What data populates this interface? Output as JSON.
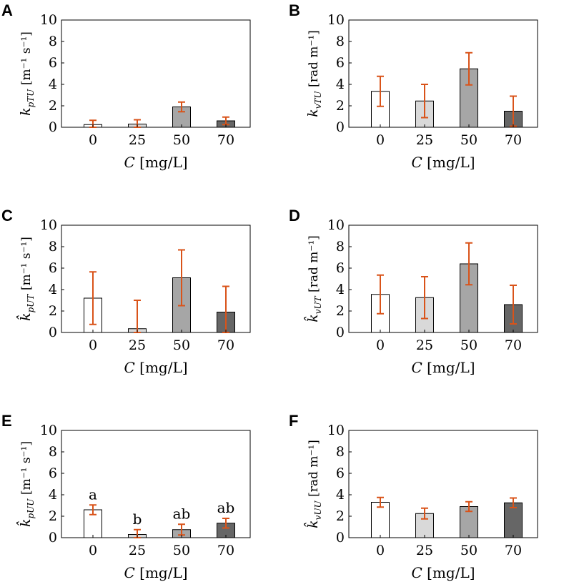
{
  "colors": {
    "error_bar": "#d95319",
    "axis": "#000000",
    "bar_fills": [
      "#ffffff",
      "#d9d9d9",
      "#a6a6a6",
      "#666666"
    ]
  },
  "chart_data": [
    {
      "panel": "A",
      "type": "bar",
      "categories": [
        "0",
        "25",
        "50",
        "70"
      ],
      "values": [
        0.25,
        0.3,
        1.9,
        0.6
      ],
      "errors": [
        0.4,
        0.4,
        0.45,
        0.35
      ],
      "ylim": [
        0,
        10
      ],
      "yticks": [
        "0",
        "2",
        "4",
        "6",
        "8",
        "10"
      ],
      "ylabel": {
        "main": "k",
        "sub": "pTU",
        "hat": false,
        "units": "[m⁻¹ s⁻¹]"
      },
      "xlabel": {
        "var": "C",
        "units": "[mg/L]"
      },
      "annotations": []
    },
    {
      "panel": "B",
      "type": "bar",
      "categories": [
        "0",
        "25",
        "50",
        "70"
      ],
      "values": [
        3.35,
        2.45,
        5.45,
        1.5
      ],
      "errors": [
        1.4,
        1.55,
        1.5,
        1.4
      ],
      "ylim": [
        0,
        10
      ],
      "yticks": [
        "0",
        "2",
        "4",
        "6",
        "8",
        "10"
      ],
      "ylabel": {
        "main": "k",
        "sub": "vTU",
        "hat": false,
        "units": "[rad m⁻¹]"
      },
      "xlabel": {
        "var": "C",
        "units": "[mg/L]"
      },
      "annotations": []
    },
    {
      "panel": "C",
      "type": "bar",
      "categories": [
        "0",
        "25",
        "50",
        "70"
      ],
      "values": [
        3.2,
        0.35,
        5.1,
        1.9
      ],
      "errors": [
        2.45,
        2.65,
        2.6,
        2.4
      ],
      "ylim": [
        0,
        10
      ],
      "yticks": [
        "0",
        "2",
        "4",
        "6",
        "8",
        "10"
      ],
      "ylabel": {
        "main": "k",
        "sub": "pUT",
        "hat": true,
        "units": "[m⁻¹ s⁻¹]"
      },
      "xlabel": {
        "var": "C",
        "units": "[mg/L]"
      },
      "annotations": []
    },
    {
      "panel": "D",
      "type": "bar",
      "categories": [
        "0",
        "25",
        "50",
        "70"
      ],
      "values": [
        3.55,
        3.25,
        6.4,
        2.6
      ],
      "errors": [
        1.8,
        1.95,
        1.95,
        1.8
      ],
      "ylim": [
        0,
        10
      ],
      "yticks": [
        "0",
        "2",
        "4",
        "6",
        "8",
        "10"
      ],
      "ylabel": {
        "main": "k",
        "sub": "vUT",
        "hat": true,
        "units": "[rad m⁻¹]"
      },
      "xlabel": {
        "var": "C",
        "units": "[mg/L]"
      },
      "annotations": []
    },
    {
      "panel": "E",
      "type": "bar",
      "categories": [
        "0",
        "25",
        "50",
        "70"
      ],
      "values": [
        2.6,
        0.3,
        0.75,
        1.35
      ],
      "errors": [
        0.45,
        0.45,
        0.5,
        0.45
      ],
      "ylim": [
        0,
        10
      ],
      "yticks": [
        "0",
        "2",
        "4",
        "6",
        "8",
        "10"
      ],
      "ylabel": {
        "main": "k",
        "sub": "pUU",
        "hat": true,
        "units": "[m⁻¹ s⁻¹]"
      },
      "xlabel": {
        "var": "C",
        "units": "[mg/L]"
      },
      "annotations": [
        "a",
        "b",
        "ab",
        "ab"
      ]
    },
    {
      "panel": "F",
      "type": "bar",
      "categories": [
        "0",
        "25",
        "50",
        "70"
      ],
      "values": [
        3.3,
        2.25,
        2.9,
        3.25
      ],
      "errors": [
        0.45,
        0.5,
        0.45,
        0.45
      ],
      "ylim": [
        0,
        10
      ],
      "yticks": [
        "0",
        "2",
        "4",
        "6",
        "8",
        "10"
      ],
      "ylabel": {
        "main": "k",
        "sub": "vUU",
        "hat": true,
        "units": "[rad m⁻¹]"
      },
      "xlabel": {
        "var": "C",
        "units": "[mg/L]"
      },
      "annotations": []
    }
  ]
}
